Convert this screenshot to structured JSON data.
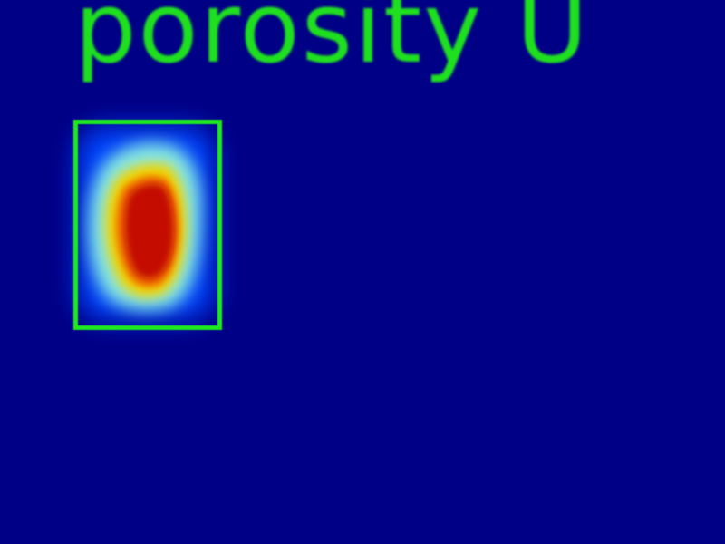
{
  "detection": {
    "label": "porosity U",
    "class_name": "porosity",
    "box_color": "#1ee81e",
    "label_color": "#1fe01f"
  },
  "colormap": {
    "background": "#000086",
    "low": "#0033ff",
    "mid": "#7fe6e6",
    "high": "#e6e600",
    "peak": "#c81400"
  }
}
